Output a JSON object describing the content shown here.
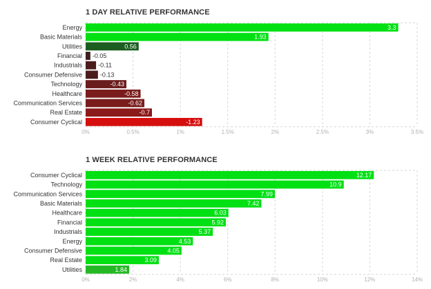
{
  "chart_data": [
    {
      "type": "bar",
      "orientation": "horizontal",
      "title": "1 DAY RELATIVE PERFORMANCE",
      "categories": [
        "Energy",
        "Basic Materials",
        "Utilities",
        "Financial",
        "Industrials",
        "Consumer Defensive",
        "Technology",
        "Healthcare",
        "Communication Services",
        "Real Estate",
        "Consumer Cyclical"
      ],
      "values": [
        3.3,
        1.93,
        0.56,
        -0.05,
        -0.11,
        -0.13,
        -0.43,
        -0.58,
        -0.62,
        -0.7,
        -1.23
      ],
      "value_labels": [
        "3.3",
        "1.93",
        "0.56",
        "-0.05",
        "-0.11",
        "-0.13",
        "-0.43",
        "-0.58",
        "-0.62",
        "-0.7",
        "-1.23"
      ],
      "colors": [
        "#00e013",
        "#00e013",
        "#1b5e20",
        "#3d1f1f",
        "#4a1c1c",
        "#4a1c1c",
        "#6b1c1c",
        "#7a1c1c",
        "#7a1c1c",
        "#8b1a1a",
        "#d50e0e"
      ],
      "xlim": [
        0,
        3.5
      ],
      "ticks": [
        "0%",
        "0.5%",
        "1%",
        "1.5%",
        "2%",
        "2.5%",
        "3%",
        "3.5%"
      ],
      "grid": true
    },
    {
      "type": "bar",
      "orientation": "horizontal",
      "title": "1 WEEK RELATIVE PERFORMANCE",
      "categories": [
        "Consumer Cyclical",
        "Technology",
        "Communication Services",
        "Basic Materials",
        "Healthcare",
        "Financial",
        "Industrials",
        "Energy",
        "Consumer Defensive",
        "Real Estate",
        "Utilities"
      ],
      "values": [
        12.17,
        10.9,
        7.99,
        7.42,
        6.03,
        5.92,
        5.37,
        4.53,
        4.05,
        3.09,
        1.84
      ],
      "value_labels": [
        "12.17",
        "10.9",
        "7.99",
        "7.42",
        "6.03",
        "5.92",
        "5.37",
        "4.53",
        "4.05",
        "3.09",
        "1.84"
      ],
      "colors": [
        "#00e013",
        "#00e013",
        "#00e013",
        "#00e013",
        "#00e013",
        "#00e013",
        "#00e013",
        "#00e013",
        "#00e013",
        "#00e013",
        "#25b825"
      ],
      "xlim": [
        0,
        14
      ],
      "ticks": [
        "0%",
        "2%",
        "4%",
        "6%",
        "8%",
        "10%",
        "12%",
        "14%"
      ],
      "grid": true
    }
  ]
}
